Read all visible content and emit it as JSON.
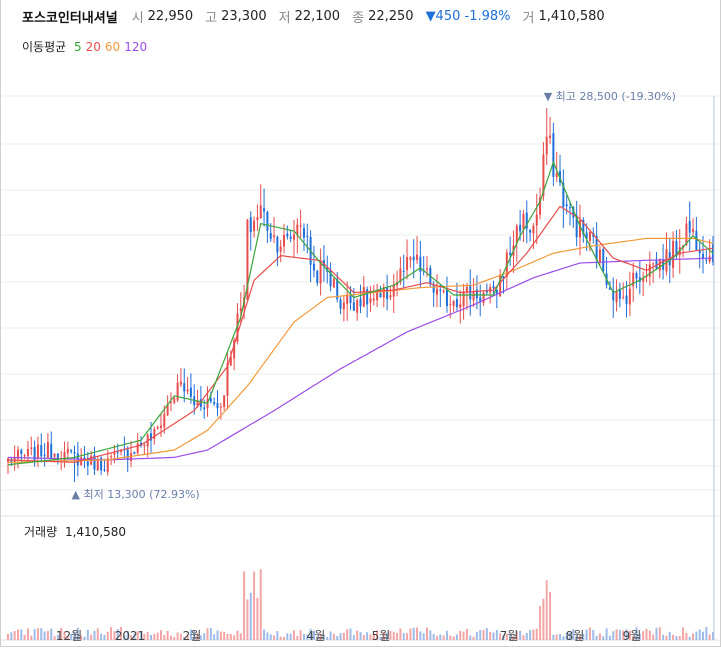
{
  "header": {
    "name": "포스코인터내셔널",
    "open_label": "시",
    "open": "22,950",
    "high_label": "고",
    "high": "23,300",
    "low_label": "저",
    "low": "22,100",
    "close_label": "종",
    "close": "22,250",
    "change": "▼450",
    "change_pct": "-1.98%",
    "volume_label": "거",
    "volume": "1,410,580"
  },
  "ma_legend": {
    "title": "이동평균",
    "items": [
      {
        "label": "5",
        "color": "#3aa63a"
      },
      {
        "label": "20",
        "color": "#e84c4c"
      },
      {
        "label": "60",
        "color": "#f29a3a"
      },
      {
        "label": "120",
        "color": "#9c4ce8"
      }
    ]
  },
  "volume_panel": {
    "label": "거래량",
    "value": "1,410,580"
  },
  "chart_data": {
    "type": "candlestick",
    "title": "포스코인터내셔널",
    "x_ticks": [
      "12월",
      "2021",
      "2월",
      "4월",
      "5월",
      "7월",
      "8월",
      "9월"
    ],
    "annotations": {
      "high": {
        "label": "최고",
        "value": "28,500",
        "pct": "(-19.30%)"
      },
      "low": {
        "label": "최저",
        "value": "13,300",
        "pct": "(72.93%)"
      }
    },
    "price_range": [
      13300,
      28500
    ],
    "last": {
      "open": 22950,
      "high": 23300,
      "low": 22100,
      "close": 22250,
      "volume": 1410580
    },
    "colors": {
      "up": "#e84c4c",
      "down": "#1e6fd9",
      "ma5": "#3aa63a",
      "ma20": "#e84c4c",
      "ma60": "#f29a3a",
      "ma120": "#9c4ce8"
    },
    "close_path": [
      [
        0,
        14200
      ],
      [
        12,
        14600
      ],
      [
        20,
        14300
      ],
      [
        28,
        14000
      ],
      [
        36,
        14500
      ],
      [
        44,
        15200
      ],
      [
        48,
        16400
      ],
      [
        52,
        17300
      ],
      [
        56,
        16500
      ],
      [
        60,
        16600
      ],
      [
        64,
        16400
      ],
      [
        68,
        19400
      ],
      [
        71,
        20700
      ],
      [
        72,
        23500
      ],
      [
        76,
        24400
      ],
      [
        80,
        23200
      ],
      [
        84,
        23000
      ],
      [
        88,
        24000
      ],
      [
        92,
        21800
      ],
      [
        96,
        21900
      ],
      [
        100,
        20600
      ],
      [
        106,
        20800
      ],
      [
        112,
        20600
      ],
      [
        118,
        21700
      ],
      [
        122,
        22300
      ],
      [
        126,
        21600
      ],
      [
        130,
        20700
      ],
      [
        134,
        20800
      ],
      [
        140,
        21000
      ],
      [
        146,
        20800
      ],
      [
        150,
        22300
      ],
      [
        154,
        23900
      ],
      [
        158,
        23600
      ],
      [
        160,
        24800
      ],
      [
        162,
        27400
      ],
      [
        164,
        26200
      ],
      [
        168,
        24400
      ],
      [
        172,
        23500
      ],
      [
        176,
        23000
      ],
      [
        180,
        21700
      ],
      [
        184,
        20500
      ],
      [
        188,
        21500
      ],
      [
        192,
        22000
      ],
      [
        196,
        22200
      ],
      [
        200,
        22600
      ],
      [
        204,
        23600
      ],
      [
        206,
        23400
      ],
      [
        210,
        22700
      ],
      [
        212,
        22250
      ]
    ],
    "ma5": [
      [
        0,
        14000
      ],
      [
        20,
        14300
      ],
      [
        40,
        15000
      ],
      [
        50,
        16800
      ],
      [
        60,
        16500
      ],
      [
        70,
        20000
      ],
      [
        76,
        23800
      ],
      [
        86,
        23500
      ],
      [
        94,
        22200
      ],
      [
        104,
        20800
      ],
      [
        116,
        21300
      ],
      [
        124,
        22000
      ],
      [
        134,
        20900
      ],
      [
        146,
        20900
      ],
      [
        154,
        23300
      ],
      [
        160,
        24700
      ],
      [
        164,
        26300
      ],
      [
        172,
        23700
      ],
      [
        182,
        21000
      ],
      [
        190,
        21500
      ],
      [
        200,
        22400
      ],
      [
        206,
        23300
      ],
      [
        212,
        22600
      ]
    ],
    "ma20": [
      [
        0,
        14200
      ],
      [
        20,
        14100
      ],
      [
        40,
        14800
      ],
      [
        56,
        16200
      ],
      [
        66,
        18000
      ],
      [
        74,
        21500
      ],
      [
        82,
        22500
      ],
      [
        94,
        22300
      ],
      [
        104,
        21000
      ],
      [
        116,
        21100
      ],
      [
        126,
        21400
      ],
      [
        136,
        21000
      ],
      [
        146,
        21100
      ],
      [
        156,
        22600
      ],
      [
        166,
        24500
      ],
      [
        172,
        24000
      ],
      [
        182,
        22400
      ],
      [
        192,
        21900
      ],
      [
        202,
        22600
      ],
      [
        212,
        22800
      ]
    ],
    "ma60": [
      [
        0,
        14100
      ],
      [
        30,
        14200
      ],
      [
        50,
        14600
      ],
      [
        60,
        15400
      ],
      [
        72,
        17200
      ],
      [
        86,
        19800
      ],
      [
        96,
        20800
      ],
      [
        110,
        21000
      ],
      [
        124,
        21200
      ],
      [
        140,
        21300
      ],
      [
        152,
        21900
      ],
      [
        164,
        22600
      ],
      [
        176,
        22900
      ],
      [
        192,
        23200
      ],
      [
        206,
        23200
      ],
      [
        212,
        23000
      ]
    ],
    "ma120": [
      [
        0,
        14300
      ],
      [
        30,
        14200
      ],
      [
        50,
        14300
      ],
      [
        60,
        14600
      ],
      [
        80,
        16200
      ],
      [
        100,
        17900
      ],
      [
        120,
        19400
      ],
      [
        140,
        20500
      ],
      [
        158,
        21600
      ],
      [
        172,
        22200
      ],
      [
        190,
        22300
      ],
      [
        212,
        22400
      ]
    ]
  }
}
